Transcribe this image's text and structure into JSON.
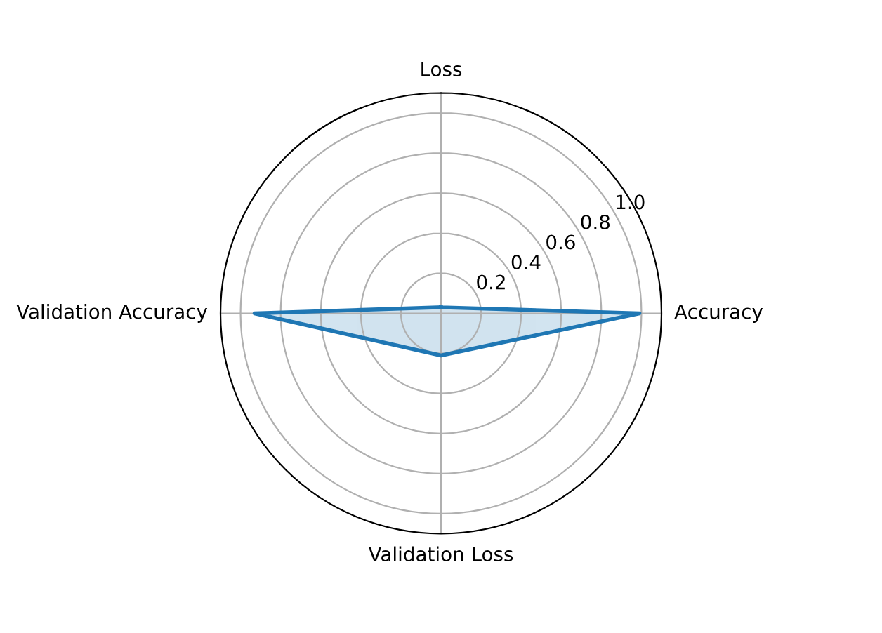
{
  "chart_data": {
    "type": "radar",
    "categories": [
      "Loss",
      "Accuracy",
      "Validation Loss",
      "Validation Accuracy"
    ],
    "series": [
      {
        "color": "#1f77b4",
        "values": [
          0.03,
          0.99,
          0.21,
          0.93
        ]
      }
    ],
    "ylim": [
      0,
      1.1
    ],
    "yticks": [
      0.2,
      0.4,
      0.6,
      0.8,
      {
        "value": 1,
        "label": "1.0"
      }
    ],
    "grid": true
  }
}
